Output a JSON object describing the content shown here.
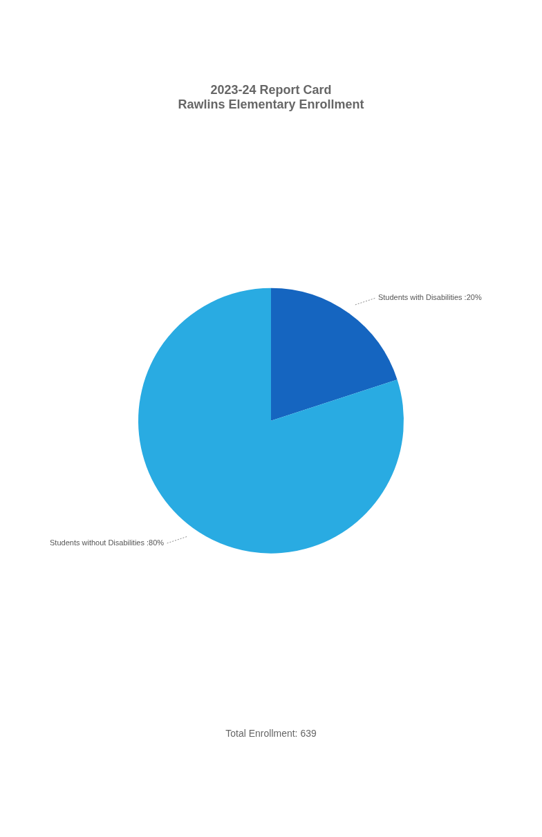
{
  "chart_data": {
    "type": "pie",
    "title": [
      "2023-24 Report Card",
      "Rawlins Elementary Enrollment"
    ],
    "subtitle": "Total Enrollment: 639",
    "categories": [
      "Students with Disabilities :20%",
      "Students without Disabilities :80%"
    ],
    "values": [
      20,
      80
    ],
    "colors": [
      "#1565C0",
      "#29ABE2"
    ]
  }
}
